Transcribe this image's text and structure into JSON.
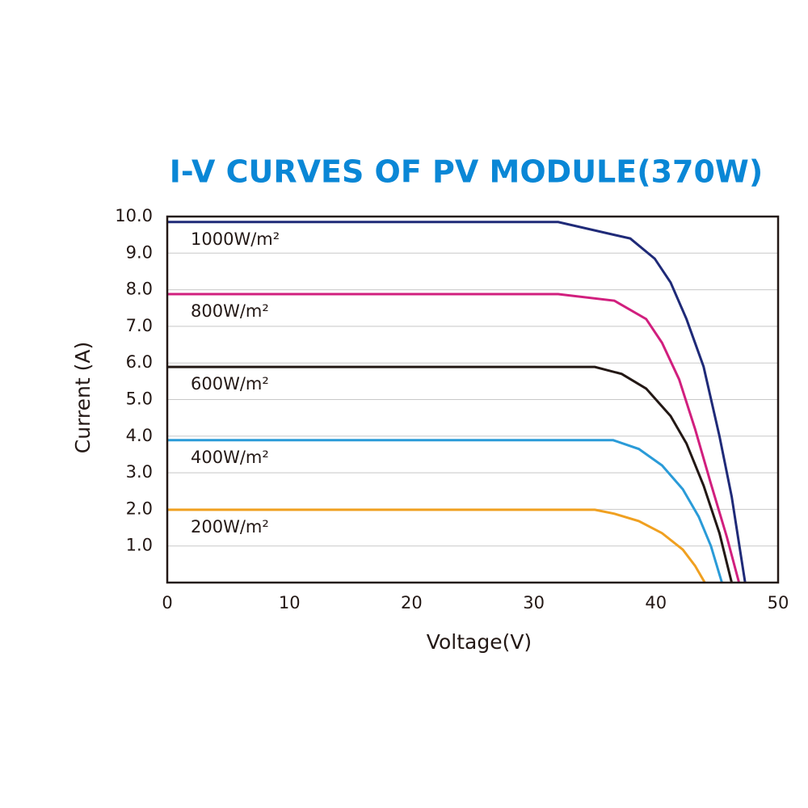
{
  "chart_data": {
    "type": "line",
    "title": "I-V CURVES OF PV MODULE(370W)",
    "x_label": "Voltage(V)",
    "y_label": "Current (A)",
    "xlim": [
      0,
      50
    ],
    "xticks": [
      0,
      10,
      20,
      30,
      40,
      50
    ],
    "ylim": [
      0,
      10
    ],
    "yticks": [
      {
        "value": 1,
        "label": "1.0"
      },
      {
        "value": 2,
        "label": "2.0"
      },
      {
        "value": 3,
        "label": "3.0"
      },
      {
        "value": 4,
        "label": "4.0"
      },
      {
        "value": 5,
        "label": "5.0"
      },
      {
        "value": 6,
        "label": "6.0"
      },
      {
        "value": 7,
        "label": "7.0"
      },
      {
        "value": 8,
        "label": "8.0"
      },
      {
        "value": 9,
        "label": "9.0"
      },
      {
        "value": 10,
        "label": "10.0"
      }
    ],
    "grid": true,
    "series": [
      {
        "name": "1000W/m²",
        "color": "#1f2a78",
        "x": [
          0,
          32,
          37.9,
          39.9,
          41.2,
          42.5,
          43.9,
          45.2,
          46.2,
          47.3
        ],
        "values": [
          9.85,
          9.85,
          9.4,
          8.85,
          8.2,
          7.2,
          5.9,
          4.0,
          2.35,
          0
        ]
      },
      {
        "name": "800W/m²",
        "color": "#d11f7e",
        "x": [
          0,
          32,
          36.6,
          39.2,
          40.5,
          41.9,
          43.2,
          44.5,
          45.8,
          46.8
        ],
        "values": [
          7.88,
          7.88,
          7.7,
          7.2,
          6.55,
          5.55,
          4.2,
          2.7,
          1.25,
          0
        ]
      },
      {
        "name": "600W/m²",
        "color": "#231815",
        "x": [
          0,
          35,
          37.2,
          39.2,
          41.2,
          42.5,
          43.9,
          45.2,
          46.2
        ],
        "values": [
          5.89,
          5.89,
          5.7,
          5.3,
          4.55,
          3.8,
          2.65,
          1.35,
          0
        ]
      },
      {
        "name": "400W/m²",
        "color": "#2a9bd8",
        "x": [
          0,
          36.5,
          38.6,
          40.5,
          42.2,
          43.5,
          44.5,
          45.4
        ],
        "values": [
          3.89,
          3.89,
          3.65,
          3.2,
          2.55,
          1.8,
          1.0,
          0
        ]
      },
      {
        "name": "200W/m²",
        "color": "#f0a020",
        "x": [
          0,
          35,
          36.6,
          38.6,
          40.5,
          42.2,
          43.2,
          44
        ],
        "values": [
          1.99,
          1.99,
          1.88,
          1.68,
          1.35,
          0.9,
          0.46,
          0
        ]
      }
    ]
  }
}
